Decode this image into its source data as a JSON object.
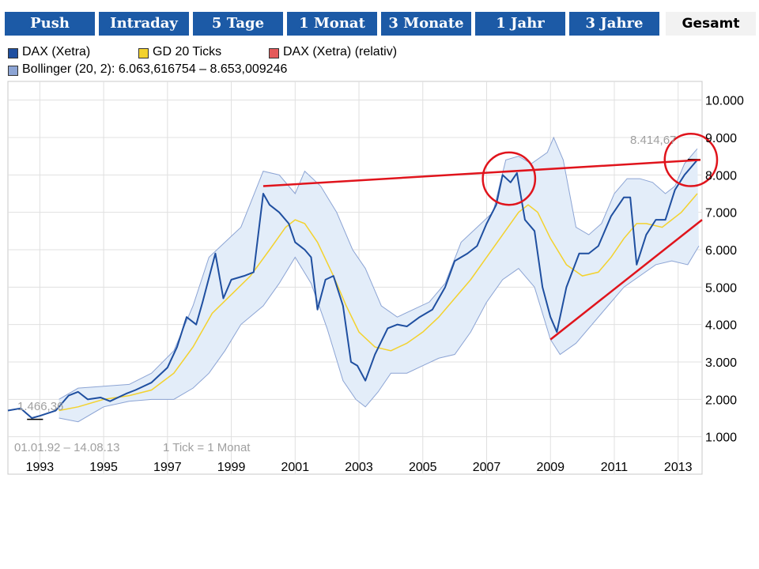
{
  "tabs": [
    {
      "label": "Push",
      "active": false
    },
    {
      "label": "Intraday",
      "active": false
    },
    {
      "label": "5 Tage",
      "active": false
    },
    {
      "label": "1 Monat",
      "active": false
    },
    {
      "label": "3 Monate",
      "active": false
    },
    {
      "label": "1 Jahr",
      "active": false
    },
    {
      "label": "3 Jahre",
      "active": false
    },
    {
      "label": "Gesamt",
      "active": true
    }
  ],
  "legend": {
    "dax": "DAX (Xetra)",
    "gd": "GD 20 Ticks",
    "rel": "DAX (Xetra) (relativ)",
    "bollinger": "Bollinger (20, 2): 6.063,616754 – 8.653,009246"
  },
  "colors": {
    "tab_bg": "#1c5aa6",
    "dax": "#1f4fa0",
    "gd": "#f3d22e",
    "rel": "#e45a5a",
    "band_fill": "#e3edf9",
    "band_line": "#8ca4d4",
    "trend": "#e0141c"
  },
  "chart_data": {
    "type": "line",
    "title": "",
    "period_label": "01.01.92 – 14.08.13",
    "tick_note": "1 Tick = 1 Monat",
    "min_label": "1.466,36",
    "max_label": "8.414,67",
    "ylim": [
      0,
      10500
    ],
    "xlim": [
      1992.0,
      2013.75
    ],
    "y_ticks": [
      "1.000",
      "2.000",
      "3.000",
      "4.000",
      "5.000",
      "6.000",
      "7.000",
      "8.000",
      "9.000",
      "10.000"
    ],
    "x_ticks": [
      "1993",
      "1995",
      "1997",
      "1999",
      "2001",
      "2003",
      "2005",
      "2007",
      "2009",
      "2011",
      "2013"
    ],
    "grid": true,
    "series": [
      {
        "name": "DAX (Xetra)",
        "type": "line",
        "points": [
          [
            1992.0,
            1700
          ],
          [
            1992.4,
            1760
          ],
          [
            1992.75,
            1500
          ],
          [
            1993.0,
            1560
          ],
          [
            1993.5,
            1700
          ],
          [
            1993.9,
            2100
          ],
          [
            1994.2,
            2200
          ],
          [
            1994.5,
            2000
          ],
          [
            1994.9,
            2050
          ],
          [
            1995.2,
            1950
          ],
          [
            1995.7,
            2150
          ],
          [
            1996.0,
            2250
          ],
          [
            1996.5,
            2450
          ],
          [
            1997.0,
            2850
          ],
          [
            1997.3,
            3400
          ],
          [
            1997.6,
            4200
          ],
          [
            1997.9,
            4000
          ],
          [
            1998.1,
            4600
          ],
          [
            1998.5,
            5900
          ],
          [
            1998.75,
            4700
          ],
          [
            1999.0,
            5200
          ],
          [
            1999.4,
            5300
          ],
          [
            1999.7,
            5400
          ],
          [
            2000.0,
            7500
          ],
          [
            2000.2,
            7200
          ],
          [
            2000.5,
            7000
          ],
          [
            2000.8,
            6700
          ],
          [
            2001.0,
            6200
          ],
          [
            2001.3,
            6000
          ],
          [
            2001.5,
            5800
          ],
          [
            2001.7,
            4400
          ],
          [
            2001.95,
            5200
          ],
          [
            2002.2,
            5300
          ],
          [
            2002.5,
            4500
          ],
          [
            2002.75,
            3000
          ],
          [
            2002.95,
            2900
          ],
          [
            2003.2,
            2500
          ],
          [
            2003.5,
            3200
          ],
          [
            2003.9,
            3900
          ],
          [
            2004.2,
            4000
          ],
          [
            2004.5,
            3950
          ],
          [
            2004.9,
            4200
          ],
          [
            2005.3,
            4400
          ],
          [
            2005.7,
            5000
          ],
          [
            2006.0,
            5700
          ],
          [
            2006.4,
            5900
          ],
          [
            2006.7,
            6100
          ],
          [
            2007.0,
            6700
          ],
          [
            2007.3,
            7200
          ],
          [
            2007.5,
            8000
          ],
          [
            2007.75,
            7800
          ],
          [
            2007.95,
            8050
          ],
          [
            2008.2,
            6800
          ],
          [
            2008.5,
            6500
          ],
          [
            2008.75,
            5000
          ],
          [
            2009.0,
            4200
          ],
          [
            2009.2,
            3800
          ],
          [
            2009.5,
            5000
          ],
          [
            2009.9,
            5900
          ],
          [
            2010.2,
            5900
          ],
          [
            2010.5,
            6100
          ],
          [
            2010.9,
            6900
          ],
          [
            2011.3,
            7400
          ],
          [
            2011.5,
            7400
          ],
          [
            2011.7,
            5600
          ],
          [
            2012.0,
            6400
          ],
          [
            2012.3,
            6800
          ],
          [
            2012.6,
            6800
          ],
          [
            2012.9,
            7600
          ],
          [
            2013.2,
            8000
          ],
          [
            2013.4,
            8200
          ],
          [
            2013.6,
            8400
          ]
        ]
      },
      {
        "name": "GD 20 Ticks",
        "type": "line",
        "points": [
          [
            1993.6,
            1700
          ],
          [
            1994.2,
            1800
          ],
          [
            1995.0,
            2000
          ],
          [
            1995.8,
            2100
          ],
          [
            1996.5,
            2250
          ],
          [
            1997.2,
            2700
          ],
          [
            1997.8,
            3400
          ],
          [
            1998.4,
            4300
          ],
          [
            1999.0,
            4800
          ],
          [
            1999.6,
            5300
          ],
          [
            2000.2,
            6000
          ],
          [
            2000.7,
            6600
          ],
          [
            2001.0,
            6800
          ],
          [
            2001.3,
            6700
          ],
          [
            2001.7,
            6200
          ],
          [
            2002.2,
            5300
          ],
          [
            2002.6,
            4500
          ],
          [
            2003.0,
            3800
          ],
          [
            2003.5,
            3400
          ],
          [
            2004.0,
            3300
          ],
          [
            2004.5,
            3500
          ],
          [
            2005.0,
            3800
          ],
          [
            2005.5,
            4200
          ],
          [
            2006.0,
            4700
          ],
          [
            2006.5,
            5200
          ],
          [
            2007.0,
            5800
          ],
          [
            2007.5,
            6400
          ],
          [
            2008.0,
            7000
          ],
          [
            2008.3,
            7200
          ],
          [
            2008.6,
            7000
          ],
          [
            2009.0,
            6300
          ],
          [
            2009.5,
            5600
          ],
          [
            2010.0,
            5300
          ],
          [
            2010.5,
            5400
          ],
          [
            2010.9,
            5800
          ],
          [
            2011.3,
            6300
          ],
          [
            2011.7,
            6700
          ],
          [
            2012.0,
            6700
          ],
          [
            2012.5,
            6600
          ],
          [
            2012.8,
            6800
          ],
          [
            2013.1,
            7000
          ],
          [
            2013.6,
            7500
          ]
        ]
      },
      {
        "name": "Bollinger upper",
        "type": "band",
        "points": [
          [
            1993.6,
            2000
          ],
          [
            1994.2,
            2300
          ],
          [
            1995.0,
            2350
          ],
          [
            1995.8,
            2400
          ],
          [
            1996.5,
            2700
          ],
          [
            1997.2,
            3300
          ],
          [
            1997.8,
            4500
          ],
          [
            1998.3,
            5800
          ],
          [
            1998.8,
            6200
          ],
          [
            1999.3,
            6600
          ],
          [
            2000.0,
            8100
          ],
          [
            2000.5,
            8000
          ],
          [
            2001.0,
            7500
          ],
          [
            2001.3,
            8100
          ],
          [
            2001.8,
            7700
          ],
          [
            2002.3,
            7000
          ],
          [
            2002.8,
            6000
          ],
          [
            2003.2,
            5500
          ],
          [
            2003.7,
            4500
          ],
          [
            2004.2,
            4200
          ],
          [
            2004.7,
            4400
          ],
          [
            2005.2,
            4600
          ],
          [
            2005.7,
            5100
          ],
          [
            2006.2,
            6200
          ],
          [
            2006.7,
            6600
          ],
          [
            2007.2,
            7000
          ],
          [
            2007.6,
            8400
          ],
          [
            2008.0,
            8500
          ],
          [
            2008.4,
            8300
          ],
          [
            2008.9,
            8600
          ],
          [
            2009.1,
            9000
          ],
          [
            2009.4,
            8400
          ],
          [
            2009.8,
            6600
          ],
          [
            2010.2,
            6400
          ],
          [
            2010.6,
            6700
          ],
          [
            2011.0,
            7500
          ],
          [
            2011.4,
            7900
          ],
          [
            2011.8,
            7900
          ],
          [
            2012.2,
            7800
          ],
          [
            2012.6,
            7500
          ],
          [
            2012.9,
            7700
          ],
          [
            2013.2,
            8300
          ],
          [
            2013.6,
            8700
          ]
        ]
      },
      {
        "name": "Bollinger lower",
        "type": "band",
        "points": [
          [
            1993.6,
            1500
          ],
          [
            1994.2,
            1400
          ],
          [
            1995.0,
            1800
          ],
          [
            1995.8,
            1950
          ],
          [
            1996.5,
            2000
          ],
          [
            1997.2,
            2000
          ],
          [
            1997.8,
            2300
          ],
          [
            1998.3,
            2700
          ],
          [
            1998.8,
            3300
          ],
          [
            1999.3,
            4000
          ],
          [
            2000.0,
            4500
          ],
          [
            2000.5,
            5100
          ],
          [
            2001.0,
            5800
          ],
          [
            2001.5,
            5100
          ],
          [
            2002.0,
            3900
          ],
          [
            2002.5,
            2500
          ],
          [
            2002.9,
            2000
          ],
          [
            2003.2,
            1800
          ],
          [
            2003.6,
            2200
          ],
          [
            2004.0,
            2700
          ],
          [
            2004.5,
            2700
          ],
          [
            2005.0,
            2900
          ],
          [
            2005.5,
            3100
          ],
          [
            2006.0,
            3200
          ],
          [
            2006.5,
            3800
          ],
          [
            2007.0,
            4600
          ],
          [
            2007.5,
            5200
          ],
          [
            2008.0,
            5500
          ],
          [
            2008.5,
            5000
          ],
          [
            2009.0,
            3600
          ],
          [
            2009.3,
            3200
          ],
          [
            2009.8,
            3500
          ],
          [
            2010.3,
            4000
          ],
          [
            2010.8,
            4500
          ],
          [
            2011.3,
            5000
          ],
          [
            2011.8,
            5300
          ],
          [
            2012.3,
            5600
          ],
          [
            2012.8,
            5700
          ],
          [
            2013.3,
            5600
          ],
          [
            2013.65,
            6100
          ]
        ]
      },
      {
        "name": "Trend upper",
        "type": "annotation",
        "points": [
          [
            2000.0,
            7700
          ],
          [
            2013.7,
            8400
          ]
        ]
      },
      {
        "name": "Trend lower",
        "type": "annotation",
        "points": [
          [
            2009.0,
            3600
          ],
          [
            2013.75,
            6800
          ]
        ]
      }
    ],
    "circles": [
      {
        "x": 2007.7,
        "y": 7900,
        "r": 700
      },
      {
        "x": 2013.4,
        "y": 8400,
        "r": 700
      }
    ]
  }
}
